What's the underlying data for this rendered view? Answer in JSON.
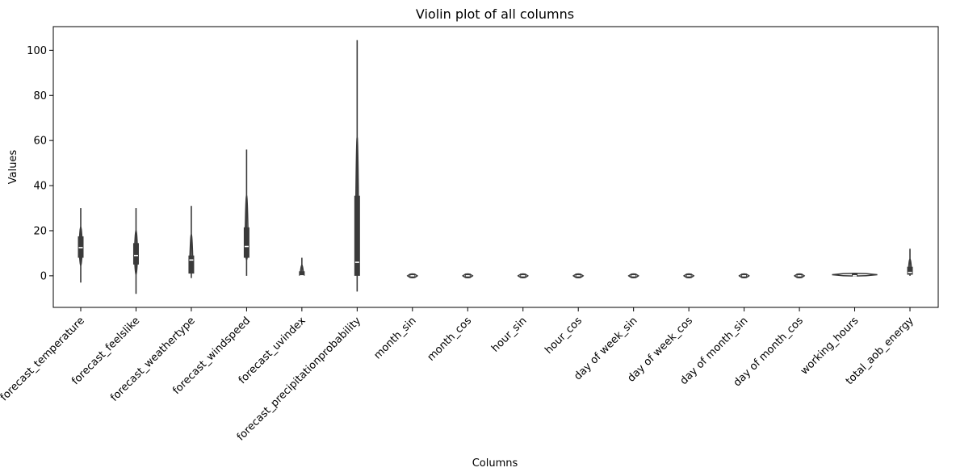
{
  "chart_data": {
    "type": "violin",
    "title": "Violin plot of all columns",
    "xlabel": "Columns",
    "ylabel": "Values",
    "ylim": [
      -14,
      110.5
    ],
    "yticks": [
      0,
      20,
      40,
      60,
      80,
      100
    ],
    "grid": false,
    "color": "#3a3a3a",
    "categories": [
      "forecast_temperature",
      "forecast_feelslike",
      "forecast_weathertype",
      "forecast_windspeed",
      "forecast_uvindex",
      "forecast_precipitationprobability",
      "month_sin",
      "month_cos",
      "hour_sin",
      "hour_cos",
      "day of week_sin",
      "day of week_cos",
      "day of month_sin",
      "day of month_cos",
      "working_hours",
      "total_aob_energy"
    ],
    "distributions": [
      {
        "min": -3,
        "q1": 8,
        "median": 12.5,
        "q3": 17.5,
        "max": 30
      },
      {
        "min": -8,
        "q1": 5,
        "median": 9,
        "q3": 14.5,
        "max": 30
      },
      {
        "min": -1,
        "q1": 1,
        "median": 7,
        "q3": 9,
        "max": 31
      },
      {
        "min": 0,
        "q1": 8,
        "median": 13,
        "q3": 21.5,
        "max": 56
      },
      {
        "min": 0,
        "q1": 0,
        "median": 0,
        "q3": 2,
        "max": 8
      },
      {
        "min": -7,
        "q1": 0,
        "median": 6,
        "q3": 35.5,
        "max": 104.5
      },
      {
        "min": -1,
        "q1": -1,
        "median": 0,
        "q3": 1,
        "max": 1
      },
      {
        "min": -1,
        "q1": -1,
        "median": 0,
        "q3": 1,
        "max": 1
      },
      {
        "min": -1,
        "q1": -1,
        "median": 0,
        "q3": 1,
        "max": 1
      },
      {
        "min": -1,
        "q1": -1,
        "median": 0,
        "q3": 1,
        "max": 1
      },
      {
        "min": -1,
        "q1": -1,
        "median": 0,
        "q3": 1,
        "max": 1
      },
      {
        "min": -1,
        "q1": -1,
        "median": 0,
        "q3": 1,
        "max": 1
      },
      {
        "min": -1,
        "q1": -1,
        "median": 0,
        "q3": 1,
        "max": 1
      },
      {
        "min": -1,
        "q1": -1,
        "median": 0,
        "q3": 1,
        "max": 1
      },
      {
        "min": 0,
        "q1": 0,
        "median": 0,
        "q3": 1,
        "max": 1
      },
      {
        "min": 0,
        "q1": 0.5,
        "median": 1.5,
        "q3": 4,
        "max": 12
      }
    ]
  }
}
